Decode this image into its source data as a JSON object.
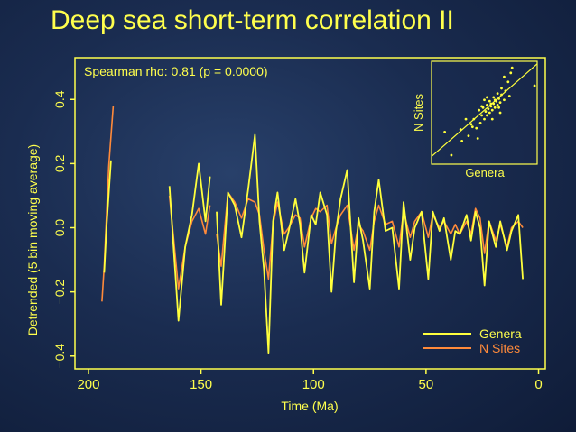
{
  "title": "Deep sea short-term correlation II",
  "colors": {
    "genera": "#ffff3c",
    "nsites": "#ff8a3a",
    "axis": "#ffff4d",
    "point": "#ffff3c"
  },
  "chart_data": {
    "type": "line",
    "annotation": "Spearman rho: 0.81 (p = 0.0000)",
    "xlabel": "Time (Ma)",
    "ylabel": "Detrended (5 bin moving average)",
    "xlim": [
      206,
      -3
    ],
    "ylim": [
      -0.44,
      0.53
    ],
    "xticks": [
      200,
      150,
      100,
      50,
      0
    ],
    "yticks": [
      -0.4,
      -0.2,
      0.0,
      0.2,
      0.4
    ],
    "ytick_labels": [
      "−0.4",
      "−0.2",
      "0.0",
      "0.2",
      "0.4"
    ],
    "legend": {
      "position": "bottom-right"
    },
    "series": [
      {
        "name": "Genera",
        "segments": [
          [
            [
              193,
              -0.14
            ],
            [
              192,
              0.0
            ],
            [
              190,
              0.21
            ]
          ],
          [
            [
              164,
              0.13
            ],
            [
              160,
              -0.29
            ],
            [
              157,
              -0.06
            ],
            [
              154,
              0.04
            ],
            [
              151,
              0.2
            ],
            [
              148,
              0.02
            ],
            [
              146,
              0.16
            ]
          ],
          [
            [
              143,
              0.05
            ],
            [
              141,
              -0.24
            ],
            [
              138,
              0.11
            ],
            [
              135,
              0.07
            ],
            [
              132,
              -0.03
            ],
            [
              129,
              0.12
            ],
            [
              126,
              0.29
            ],
            [
              124,
              0.02
            ],
            [
              122,
              -0.13
            ],
            [
              120,
              -0.39
            ],
            [
              118,
              0.02
            ],
            [
              116,
              0.11
            ],
            [
              113,
              -0.07
            ],
            [
              111,
              -0.01
            ],
            [
              108,
              0.09
            ],
            [
              106,
              0.01
            ],
            [
              104,
              -0.14
            ],
            [
              101,
              0.04
            ],
            [
              99,
              0.01
            ],
            [
              97,
              0.11
            ],
            [
              94,
              0.04
            ],
            [
              92,
              -0.2
            ],
            [
              90,
              -0.01
            ],
            [
              88,
              0.09
            ],
            [
              85,
              0.18
            ],
            [
              82,
              -0.17
            ],
            [
              80,
              0.03
            ],
            [
              78,
              -0.04
            ],
            [
              75,
              -0.19
            ],
            [
              73,
              0.05
            ],
            [
              71,
              0.15
            ],
            [
              68,
              -0.01
            ],
            [
              65,
              0.0
            ],
            [
              62,
              -0.19
            ],
            [
              60,
              0.08
            ],
            [
              57,
              -0.1
            ],
            [
              55,
              0.0
            ],
            [
              52,
              0.05
            ],
            [
              49,
              -0.16
            ],
            [
              47,
              0.05
            ],
            [
              44,
              -0.01
            ],
            [
              42,
              0.03
            ],
            [
              39,
              -0.1
            ],
            [
              37,
              -0.01
            ],
            [
              35,
              -0.02
            ],
            [
              32,
              0.04
            ],
            [
              30,
              -0.04
            ],
            [
              28,
              0.05
            ],
            [
              26,
              0.0
            ],
            [
              24,
              -0.18
            ],
            [
              22,
              0.02
            ],
            [
              19,
              -0.06
            ],
            [
              17,
              0.02
            ],
            [
              14,
              -0.07
            ],
            [
              12,
              -0.01
            ],
            [
              9,
              0.04
            ],
            [
              7,
              -0.16
            ]
          ]
        ]
      },
      {
        "name": "N Sites",
        "segments": [
          [
            [
              194,
              -0.23
            ],
            [
              193,
              -0.12
            ],
            [
              191,
              0.19
            ],
            [
              189,
              0.38
            ]
          ],
          [
            [
              164,
              0.1
            ],
            [
              160,
              -0.19
            ],
            [
              157,
              -0.06
            ],
            [
              154,
              0.02
            ],
            [
              151,
              0.06
            ],
            [
              148,
              -0.02
            ],
            [
              146,
              0.07
            ]
          ],
          [
            [
              143,
              -0.02
            ],
            [
              141,
              -0.12
            ],
            [
              138,
              0.11
            ],
            [
              135,
              0.08
            ],
            [
              132,
              0.03
            ],
            [
              129,
              0.09
            ],
            [
              126,
              0.08
            ],
            [
              124,
              0.04
            ],
            [
              122,
              -0.07
            ],
            [
              120,
              -0.16
            ],
            [
              118,
              0.01
            ],
            [
              116,
              0.08
            ],
            [
              113,
              -0.02
            ],
            [
              111,
              0.0
            ],
            [
              108,
              0.04
            ],
            [
              106,
              0.03
            ],
            [
              104,
              -0.06
            ],
            [
              101,
              0.03
            ],
            [
              99,
              0.06
            ],
            [
              97,
              0.05
            ],
            [
              94,
              0.07
            ],
            [
              92,
              -0.05
            ],
            [
              90,
              0.0
            ],
            [
              88,
              0.04
            ],
            [
              85,
              0.07
            ],
            [
              82,
              -0.07
            ],
            [
              80,
              0.01
            ],
            [
              78,
              -0.01
            ],
            [
              75,
              -0.07
            ],
            [
              73,
              0.02
            ],
            [
              71,
              0.07
            ],
            [
              68,
              0.01
            ],
            [
              65,
              0.02
            ],
            [
              62,
              -0.06
            ],
            [
              60,
              0.05
            ],
            [
              57,
              -0.03
            ],
            [
              55,
              0.02
            ],
            [
              52,
              0.05
            ],
            [
              49,
              -0.03
            ],
            [
              47,
              0.04
            ],
            [
              44,
              0.0
            ],
            [
              42,
              0.02
            ],
            [
              39,
              -0.02
            ],
            [
              37,
              0.01
            ],
            [
              35,
              -0.02
            ],
            [
              32,
              0.02
            ],
            [
              30,
              -0.02
            ],
            [
              28,
              0.06
            ],
            [
              26,
              0.03
            ],
            [
              24,
              -0.08
            ],
            [
              22,
              0.02
            ],
            [
              19,
              -0.04
            ],
            [
              17,
              0.01
            ],
            [
              14,
              -0.06
            ],
            [
              12,
              0.0
            ],
            [
              9,
              0.02
            ],
            [
              7,
              0.0
            ]
          ]
        ]
      }
    ],
    "inset": {
      "type": "scatter",
      "xlabel": "Genera",
      "ylabel": "N Sites",
      "xlim": [
        -0.4,
        0.4
      ],
      "ylim": [
        -0.4,
        0.4
      ],
      "points": [
        [
          -0.25,
          -0.33
        ],
        [
          -0.3,
          -0.15
        ],
        [
          -0.17,
          -0.22
        ],
        [
          -0.18,
          -0.13
        ],
        [
          -0.12,
          -0.18
        ],
        [
          -0.1,
          -0.09
        ],
        [
          -0.05,
          -0.2
        ],
        [
          -0.08,
          -0.05
        ],
        [
          -0.06,
          -0.12
        ],
        [
          -0.03,
          -0.08
        ],
        [
          -0.02,
          -0.02
        ],
        [
          0.0,
          -0.05
        ],
        [
          0.01,
          0.01
        ],
        [
          0.02,
          -0.02
        ],
        [
          0.03,
          0.03
        ],
        [
          0.04,
          0.0
        ],
        [
          0.05,
          0.05
        ],
        [
          0.06,
          0.02
        ],
        [
          0.07,
          0.07
        ],
        [
          0.08,
          0.04
        ],
        [
          0.09,
          0.09
        ],
        [
          0.1,
          0.06
        ],
        [
          0.11,
          0.11
        ],
        [
          0.12,
          0.08
        ],
        [
          0.13,
          0.14
        ],
        [
          0.15,
          0.1
        ],
        [
          0.16,
          0.17
        ],
        [
          0.02,
          0.06
        ],
        [
          -0.01,
          0.04
        ],
        [
          0.04,
          0.09
        ],
        [
          0.07,
          0.12
        ],
        [
          0.1,
          0.15
        ],
        [
          0.13,
          0.19
        ],
        [
          0.18,
          0.24
        ],
        [
          0.15,
          0.28
        ],
        [
          0.2,
          0.31
        ],
        [
          0.21,
          0.35
        ],
        [
          -0.04,
          0.02
        ],
        [
          0.0,
          0.1
        ],
        [
          0.06,
          -0.05
        ],
        [
          0.12,
          0.0
        ],
        [
          -0.09,
          -0.11
        ],
        [
          0.19,
          0.13
        ],
        [
          -0.14,
          -0.05
        ],
        [
          0.38,
          0.21
        ],
        [
          0.02,
          0.12
        ],
        [
          0.05,
          0.07
        ],
        [
          -0.02,
          0.05
        ],
        [
          0.08,
          0.1
        ],
        [
          0.11,
          0.04
        ]
      ],
      "fit": [
        [
          -0.4,
          -0.34
        ],
        [
          0.4,
          0.38
        ]
      ]
    }
  }
}
